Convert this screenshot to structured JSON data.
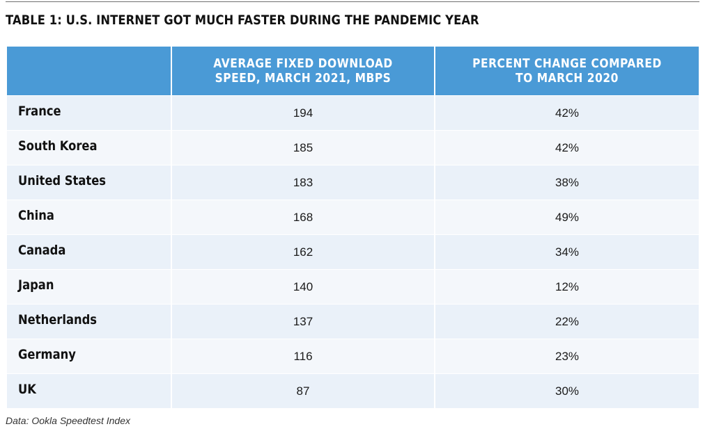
{
  "title": "TABLE 1: U.S. INTERNET GOT MUCH FASTER DURING THE PANDEMIC YEAR",
  "source": "Data: Ookla Speedtest Index",
  "colors": {
    "header_bg": "#4a9ad6",
    "header_text": "#ffffff",
    "row_odd": "#eaf1f9",
    "row_even": "#f4f7fb"
  },
  "chart_data": {
    "type": "table",
    "title": "TABLE 1: U.S. INTERNET GOT MUCH FASTER DURING THE PANDEMIC YEAR",
    "columns": [
      "",
      "AVERAGE FIXED DOWNLOAD SPEED, MARCH 2021, MBPS",
      "PERCENT CHANGE COMPARED TO MARCH 2020"
    ],
    "rows": [
      [
        "France",
        "194",
        "42%"
      ],
      [
        "South Korea",
        "185",
        "42%"
      ],
      [
        "United States",
        "183",
        "38%"
      ],
      [
        "China",
        "168",
        "49%"
      ],
      [
        "Canada",
        "162",
        "34%"
      ],
      [
        "Japan",
        "140",
        "12%"
      ],
      [
        "Netherlands",
        "137",
        "22%"
      ],
      [
        "Germany",
        "116",
        "23%"
      ],
      [
        "UK",
        "87",
        "30%"
      ]
    ],
    "source": "Data: Ookla Speedtest Index"
  }
}
